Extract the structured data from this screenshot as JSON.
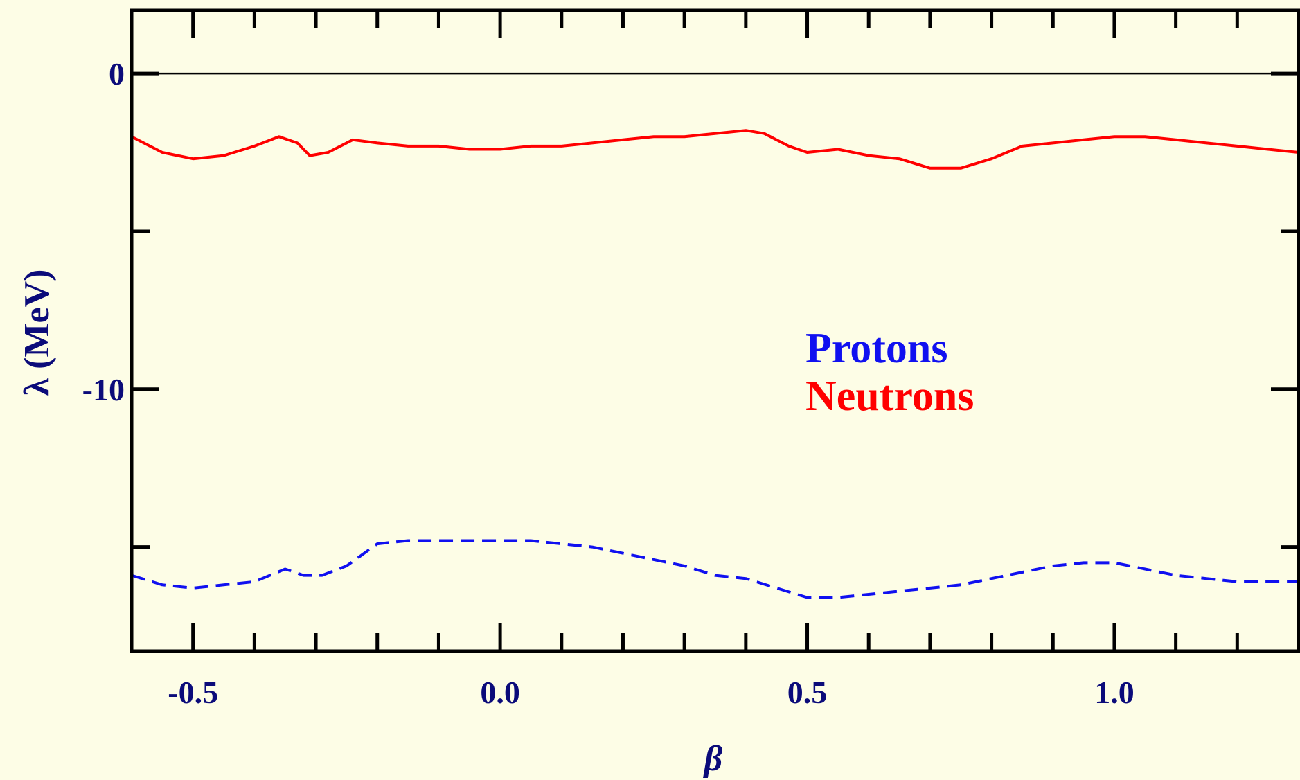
{
  "colors": {
    "background": "#fdfde6",
    "axis_text": "#0b0b7a",
    "protons": "#1010f0",
    "neutrons": "#ff0000",
    "frame": "#000000"
  },
  "chart_data": {
    "type": "line",
    "xlabel": "β",
    "ylabel": "λ (MeV)",
    "xlim": [
      -0.6,
      1.3
    ],
    "ylim": [
      -18.3,
      2.0
    ],
    "x_tick_labels": [
      "-0.5",
      "0.0",
      "0.5",
      "1.0"
    ],
    "y_tick_labels": [
      "0",
      "-10"
    ],
    "x_major_ticks": [
      -0.5,
      0.0,
      0.5,
      1.0
    ],
    "x_minor_step": 0.1,
    "y_major_ticks": [
      0,
      -10
    ],
    "y_minor_ticks": [
      -5,
      -15
    ],
    "reference_line": 0,
    "grid": false,
    "legend_position": "center-right",
    "series": [
      {
        "name": "Protons",
        "style": "dashed",
        "x": [
          -0.6,
          -0.55,
          -0.5,
          -0.45,
          -0.4,
          -0.35,
          -0.32,
          -0.29,
          -0.25,
          -0.2,
          -0.15,
          -0.1,
          -0.05,
          0.0,
          0.05,
          0.1,
          0.15,
          0.2,
          0.25,
          0.3,
          0.35,
          0.4,
          0.45,
          0.5,
          0.55,
          0.6,
          0.65,
          0.7,
          0.75,
          0.8,
          0.85,
          0.9,
          0.95,
          1.0,
          1.05,
          1.1,
          1.15,
          1.2,
          1.25,
          1.3
        ],
        "y": [
          -15.9,
          -16.2,
          -16.3,
          -16.2,
          -16.1,
          -15.7,
          -15.9,
          -15.9,
          -15.6,
          -14.9,
          -14.8,
          -14.8,
          -14.8,
          -14.8,
          -14.8,
          -14.9,
          -15.0,
          -15.2,
          -15.4,
          -15.6,
          -15.9,
          -16.0,
          -16.3,
          -16.6,
          -16.6,
          -16.5,
          -16.4,
          -16.3,
          -16.2,
          -16.0,
          -15.8,
          -15.6,
          -15.5,
          -15.5,
          -15.7,
          -15.9,
          -16.0,
          -16.1,
          -16.1,
          -16.1
        ]
      },
      {
        "name": "Neutrons",
        "style": "solid",
        "x": [
          -0.6,
          -0.55,
          -0.5,
          -0.45,
          -0.4,
          -0.36,
          -0.33,
          -0.31,
          -0.28,
          -0.24,
          -0.2,
          -0.15,
          -0.1,
          -0.05,
          0.0,
          0.05,
          0.1,
          0.15,
          0.2,
          0.25,
          0.3,
          0.35,
          0.4,
          0.43,
          0.47,
          0.5,
          0.55,
          0.6,
          0.65,
          0.7,
          0.75,
          0.8,
          0.85,
          0.9,
          0.95,
          1.0,
          1.05,
          1.1,
          1.15,
          1.2,
          1.25,
          1.3
        ],
        "y": [
          -2.0,
          -2.5,
          -2.7,
          -2.6,
          -2.3,
          -2.0,
          -2.2,
          -2.6,
          -2.5,
          -2.1,
          -2.2,
          -2.3,
          -2.3,
          -2.4,
          -2.4,
          -2.3,
          -2.3,
          -2.2,
          -2.1,
          -2.0,
          -2.0,
          -1.9,
          -1.8,
          -1.9,
          -2.3,
          -2.5,
          -2.4,
          -2.6,
          -2.7,
          -3.0,
          -3.0,
          -2.7,
          -2.3,
          -2.2,
          -2.1,
          -2.0,
          -2.0,
          -2.1,
          -2.2,
          -2.3,
          -2.4,
          -2.5
        ]
      }
    ]
  }
}
